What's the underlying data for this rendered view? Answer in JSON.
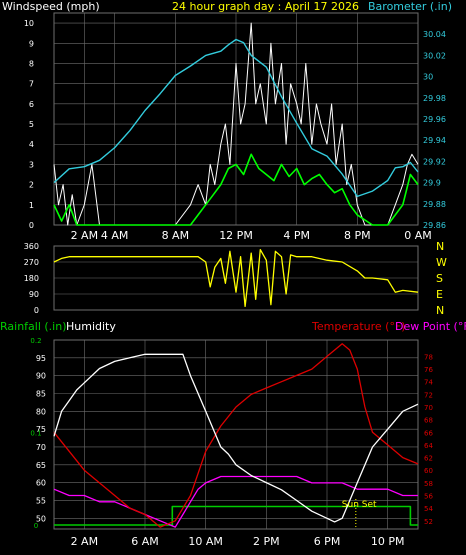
{
  "colors": {
    "background": "#000000",
    "frame": "#6e6e6e",
    "grid": "#6e6e6e",
    "title": "#ffff00",
    "wind_avg": "#00ff00",
    "wind_gust": "#ffffff",
    "barometer": "#33ccdd",
    "direction": "#ffff00",
    "rain": "#00cc00",
    "humidity": "#ffffff",
    "temperature": "#dd0000",
    "dewpoint": "#ff00ff",
    "sunset": "#ffff00"
  },
  "header": {
    "windspeed_label": "Windspeed (mph)",
    "title": "24 hour graph day : April 17 2026",
    "barometer_label": "Barometer (.in)"
  },
  "lower_header": {
    "rain_label": "Rainfall (.in)",
    "humidity_label": "Humidity",
    "temperature_label": "Temperature (°F)",
    "dewpoint_label": "Dew Point (°F)"
  },
  "sunset_label": "Sun Set",
  "chart_data": [
    {
      "type": "line",
      "id": "wind-barometer",
      "x_unit": "hour of day",
      "xlim": [
        0,
        24
      ],
      "x_ticks": [
        {
          "x": 2,
          "label": "2 AM"
        },
        {
          "x": 4,
          "label": "4 AM"
        },
        {
          "x": 8,
          "label": "8 AM"
        },
        {
          "x": 12,
          "label": "12 PM"
        },
        {
          "x": 16,
          "label": "4 PM"
        },
        {
          "x": 20,
          "label": "8 PM"
        },
        {
          "x": 24,
          "label": "0 AM"
        }
      ],
      "y_left": {
        "label": "Windspeed (mph)",
        "ylim": [
          0,
          10.5
        ],
        "ticks": [
          0,
          1,
          2,
          3,
          4,
          5,
          6,
          7,
          8,
          9,
          10
        ]
      },
      "y_right": {
        "label": "Barometer (.in)",
        "ylim": [
          29.86,
          30.06
        ],
        "ticks": [
          "29.86",
          "29.88",
          "29.9",
          "29.92",
          "29.94",
          "29.96",
          "29.98",
          "30",
          "30.02",
          "30.04"
        ]
      },
      "series": [
        {
          "kind": "barometer",
          "axis": "right",
          "x": [
            0,
            1,
            2,
            3,
            4,
            5,
            6,
            7,
            8,
            9,
            10,
            11,
            11.5,
            12,
            12.5,
            13,
            14,
            15,
            16,
            17,
            18,
            19,
            20,
            21,
            22,
            22.5,
            23,
            23.5,
            24
          ],
          "y": [
            29.9,
            29.913,
            29.915,
            29.921,
            29.933,
            29.949,
            29.968,
            29.984,
            30.001,
            30.01,
            30.02,
            30.024,
            30.03,
            30.035,
            30.032,
            30.02,
            30.009,
            29.981,
            29.956,
            29.932,
            29.925,
            29.908,
            29.887,
            29.892,
            29.902,
            29.914,
            29.915,
            29.919,
            29.91
          ]
        },
        {
          "kind": "gust",
          "axis": "left",
          "x": [
            0,
            0.3,
            0.6,
            0.9,
            1.2,
            1.5,
            2,
            2.5,
            3,
            4,
            5,
            6,
            7,
            8,
            9,
            9.5,
            10,
            10.3,
            10.6,
            11,
            11.3,
            11.6,
            12,
            12.3,
            12.6,
            13,
            13.3,
            13.6,
            14,
            14.3,
            14.6,
            15,
            15.3,
            15.6,
            16,
            16.3,
            16.6,
            17,
            17.3,
            17.6,
            18,
            18.3,
            18.6,
            19,
            19.3,
            19.6,
            20,
            20.5,
            21,
            22,
            22.5,
            23,
            23.3,
            23.6,
            24
          ],
          "y": [
            3,
            1,
            2,
            0,
            1.5,
            0,
            1,
            3,
            0,
            0,
            0,
            0,
            0,
            0,
            1,
            2,
            1,
            3,
            2,
            4,
            5,
            3,
            8,
            5,
            6,
            10,
            6,
            7,
            5,
            9,
            6,
            8,
            4,
            7,
            6,
            5,
            8,
            4,
            6,
            5,
            4,
            6,
            3,
            5,
            2,
            3,
            1,
            0,
            0,
            0,
            1,
            2,
            3,
            3.5,
            3
          ]
        },
        {
          "kind": "average",
          "axis": "left",
          "x": [
            0,
            0.5,
            1,
            1.5,
            2,
            3,
            4,
            5,
            6,
            7,
            8,
            9,
            9.5,
            10,
            10.5,
            11,
            11.5,
            12,
            12.5,
            13,
            13.5,
            14,
            14.5,
            15,
            15.5,
            16,
            16.5,
            17,
            17.5,
            18,
            18.5,
            19,
            19.5,
            20,
            21,
            22,
            22.5,
            23,
            23.5,
            24
          ],
          "y": [
            1,
            0.2,
            1,
            0,
            0,
            0,
            0,
            0,
            0,
            0,
            0,
            0,
            0.5,
            1,
            1.5,
            2,
            2.8,
            3,
            2.5,
            3.5,
            2.8,
            2.5,
            2.2,
            3,
            2.4,
            2.8,
            2,
            2.3,
            2.5,
            2,
            1.6,
            1.8,
            1,
            0.5,
            0,
            0,
            0.5,
            1,
            2.5,
            2
          ]
        }
      ]
    },
    {
      "type": "line",
      "id": "wind-direction",
      "x_unit": "hour of day",
      "xlim": [
        0,
        24
      ],
      "y_left": {
        "ylim": [
          0,
          360
        ],
        "ticks": [
          0,
          90,
          180,
          270,
          360
        ]
      },
      "y_right": {
        "ticks": [
          "N",
          "W",
          "S",
          "E",
          "N"
        ]
      },
      "series": [
        {
          "kind": "direction",
          "axis": "left",
          "x": [
            0,
            0.5,
            1,
            2,
            4,
            6,
            8,
            9.5,
            10,
            10.3,
            10.6,
            11,
            11.3,
            11.6,
            12,
            12.3,
            12.6,
            13,
            13.3,
            13.6,
            14,
            14.3,
            14.6,
            15,
            15.3,
            15.6,
            16,
            17,
            18,
            19,
            20,
            20.5,
            21,
            22,
            22.5,
            23,
            24
          ],
          "y": [
            270,
            290,
            300,
            300,
            300,
            300,
            300,
            300,
            270,
            130,
            240,
            290,
            150,
            330,
            100,
            300,
            20,
            320,
            60,
            340,
            280,
            30,
            330,
            300,
            90,
            310,
            300,
            300,
            280,
            270,
            220,
            180,
            180,
            170,
            100,
            110,
            100
          ]
        }
      ]
    },
    {
      "type": "line",
      "id": "rain-humidity-temperature",
      "x_unit": "hour of day",
      "xlim": [
        0,
        24
      ],
      "x_ticks": [
        {
          "x": 2,
          "label": "2 AM"
        },
        {
          "x": 6,
          "label": "6 AM"
        },
        {
          "x": 10,
          "label": "10 AM"
        },
        {
          "x": 14,
          "label": "2 PM"
        },
        {
          "x": 18,
          "label": "6 PM"
        },
        {
          "x": 22,
          "label": "10 PM"
        }
      ],
      "y_left": {
        "label": "Humidity",
        "ylim": [
          47,
          100
        ],
        "ticks": [
          50,
          55,
          60,
          65,
          70,
          75,
          80,
          85,
          90,
          95
        ]
      },
      "y_rain": {
        "label": "Rainfall (.in)",
        "ticks": [
          "0",
          "0.1",
          "0.2"
        ]
      },
      "y_right": {
        "label": "Temperature (°F)",
        "ylim": [
          50.7,
          80.6
        ],
        "ticks": [
          52,
          54,
          56,
          58,
          60,
          62,
          64,
          66,
          68,
          70,
          72,
          74,
          76,
          78
        ]
      },
      "sunset_hour": 19.9,
      "series": [
        {
          "kind": "humidity",
          "axis": "left",
          "x": [
            0,
            0.5,
            1,
            1.5,
            2,
            3,
            4,
            5,
            6,
            7,
            8,
            8.5,
            9,
            9.5,
            10,
            10.5,
            11,
            11.5,
            12,
            13,
            14,
            15,
            16,
            17,
            18,
            18.5,
            19,
            20,
            21,
            22,
            23,
            24
          ],
          "y": [
            73,
            80,
            83,
            86,
            88,
            92,
            94,
            95,
            96,
            96,
            96,
            96,
            90,
            85,
            80,
            75,
            70,
            68,
            65,
            62,
            60,
            58,
            55,
            52,
            50,
            49,
            50,
            60,
            70,
            75,
            80,
            82
          ]
        },
        {
          "kind": "rain",
          "axis": "rain",
          "x": [
            0,
            3,
            6,
            7.8,
            7.8,
            12,
            18,
            21,
            23.5,
            23.5,
            24
          ],
          "y": [
            0,
            0,
            0,
            0,
            0.02,
            0.02,
            0.02,
            0.02,
            0.02,
            0,
            0
          ]
        },
        {
          "kind": "temperature",
          "axis": "right",
          "x": [
            0,
            1,
            2,
            3,
            4,
            5,
            6,
            7,
            8,
            9,
            10,
            11,
            12,
            13,
            14,
            15,
            16,
            17,
            18,
            19,
            19.5,
            20,
            20.5,
            21,
            22,
            23,
            24
          ],
          "y": [
            66,
            63,
            60,
            58,
            56,
            54,
            53,
            51,
            52,
            56,
            63,
            67,
            70,
            72,
            73,
            74,
            75,
            76,
            78,
            80,
            79,
            76,
            70,
            66,
            64,
            62,
            61
          ]
        },
        {
          "kind": "dewpoint",
          "axis": "right",
          "x": [
            0,
            1,
            2,
            3,
            4,
            5,
            6,
            7,
            8,
            8.5,
            9,
            9.5,
            10,
            11,
            12,
            13,
            14,
            15,
            16,
            17,
            18,
            19,
            20,
            21,
            22,
            23,
            24
          ],
          "y": [
            57,
            56,
            56,
            55,
            55,
            54,
            53,
            52,
            51,
            53,
            55,
            57,
            58,
            59,
            59,
            59,
            59,
            59,
            59,
            58,
            58,
            58,
            57,
            57,
            57,
            56,
            56
          ]
        }
      ]
    }
  ]
}
